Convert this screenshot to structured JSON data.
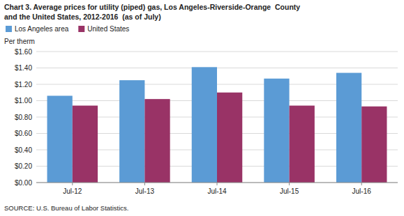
{
  "chart_data": {
    "type": "bar",
    "title": "Chart 3. Average prices for utility (piped) gas, Los Angeles-Riverside-Orange  County",
    "subtitle": "and the United States, 2012-2016  (as of July)",
    "y_label": "Per therm",
    "source": "SOURCE: U.S. Bureau of Labor Statistics.",
    "categories": [
      "Jul-12",
      "Jul-13",
      "Jul-14",
      "Jul-15",
      "Jul-16"
    ],
    "series": [
      {
        "name": "Los Angeles area",
        "color": "#5B9BD5",
        "values": [
          1.06,
          1.25,
          1.41,
          1.27,
          1.34
        ]
      },
      {
        "name": "United States",
        "color": "#993366",
        "values": [
          0.94,
          1.02,
          1.1,
          0.94,
          0.93
        ]
      }
    ],
    "ylim": [
      0,
      1.6
    ],
    "yticks": [
      {
        "value": 0.0,
        "label": "$0.00"
      },
      {
        "value": 0.2,
        "label": "$0.20"
      },
      {
        "value": 0.4,
        "label": "$0.40"
      },
      {
        "value": 0.6,
        "label": "$0.60"
      },
      {
        "value": 0.8,
        "label": "$0.80"
      },
      {
        "value": 1.0,
        "label": "$1.00"
      },
      {
        "value": 1.2,
        "label": "$1.20"
      },
      {
        "value": 1.4,
        "label": "$1.40"
      },
      {
        "value": 1.6,
        "label": "$1.60"
      }
    ],
    "grid": true,
    "legend": "top-left"
  }
}
